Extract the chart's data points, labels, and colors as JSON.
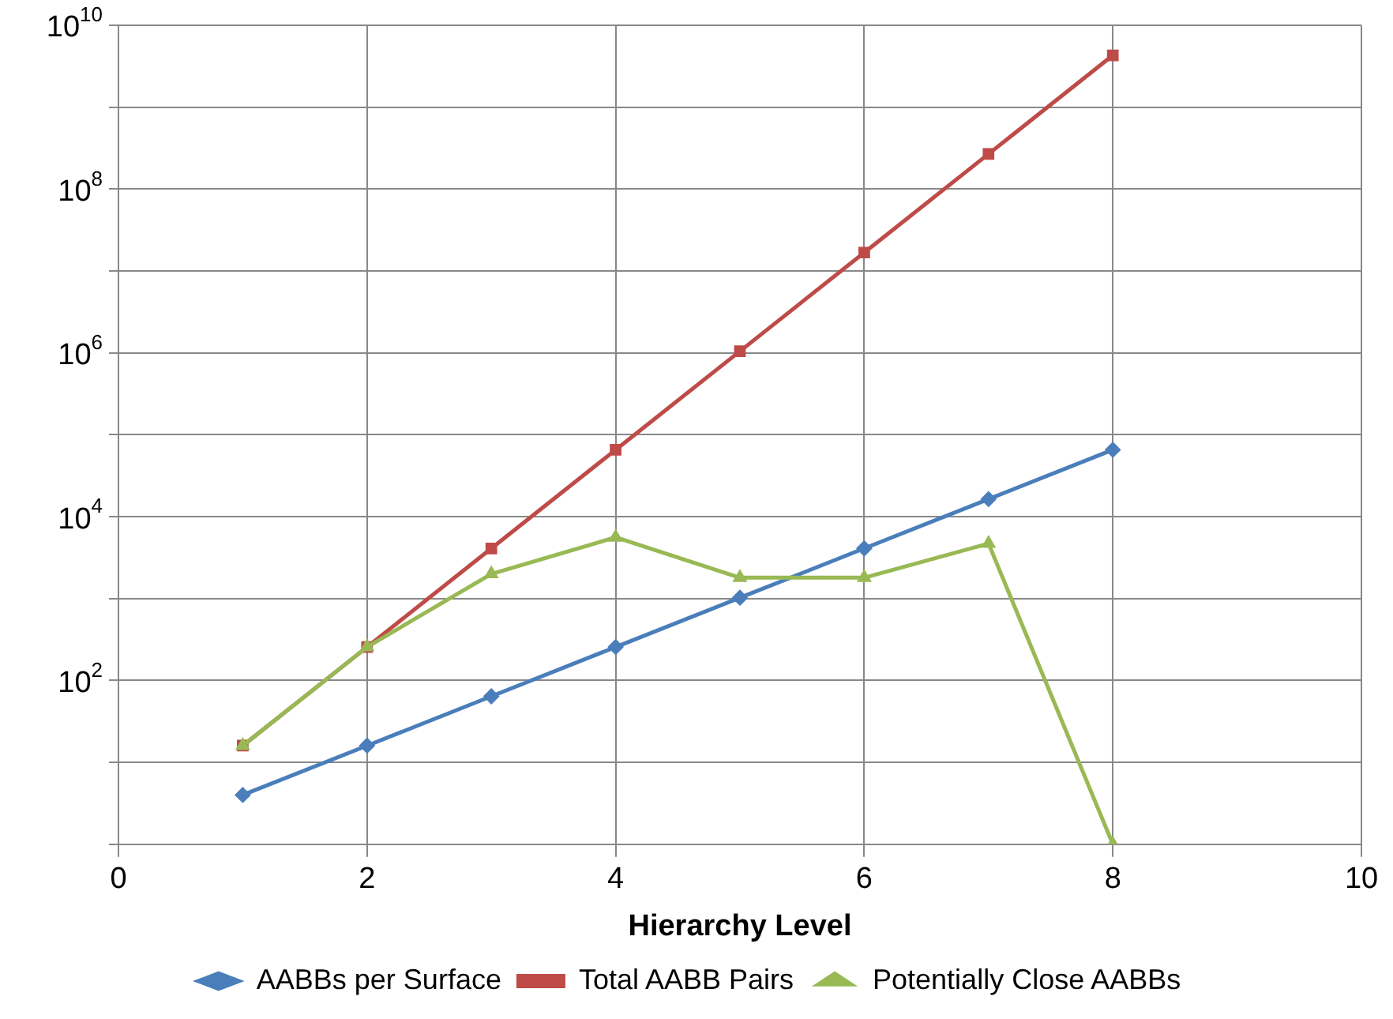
{
  "chart_data": {
    "type": "line",
    "xlabel": "Hierarchy Level",
    "x": [
      1,
      2,
      3,
      4,
      5,
      6,
      7,
      8
    ],
    "xlim": [
      0,
      10
    ],
    "xticks": [
      0,
      2,
      4,
      6,
      8,
      10
    ],
    "log": "y",
    "ylim": [
      1,
      10000000000
    ],
    "yticks": [
      {
        "value": 1,
        "label": null
      },
      {
        "value": 10,
        "label": null
      },
      {
        "value": 100,
        "label": "10$^{2}$"
      },
      {
        "value": 1000,
        "label": null
      },
      {
        "value": 10000,
        "label": "10$^{4}$"
      },
      {
        "value": 100000,
        "label": null
      },
      {
        "value": 1000000,
        "label": "10$^{6}$"
      },
      {
        "value": 10000000,
        "label": null
      },
      {
        "value": 100000000,
        "label": "10$^{8}$"
      },
      {
        "value": 1000000000,
        "label": null
      },
      {
        "value": 10000000000,
        "label": "10$^{10}$"
      }
    ],
    "grid": true,
    "legend": "bottom",
    "line_style": "solid",
    "series": [
      {
        "name": "AABBs per Surface",
        "color": "#4a7ebb",
        "marker": "diamond",
        "values": [
          4,
          16,
          64,
          256,
          1024,
          4096,
          16384,
          65536
        ]
      },
      {
        "name": "Total AABB Pairs",
        "color": "#be4b48",
        "marker": "square",
        "values": [
          16,
          256,
          4096,
          65536,
          1048576,
          16777216,
          268435456,
          4294967296
        ]
      },
      {
        "name": "Potentially Close AABBs",
        "color": "#98b954",
        "marker": "triangle",
        "values": [
          16,
          256,
          2000,
          5600,
          1800,
          1800,
          4700,
          1
        ]
      }
    ]
  }
}
